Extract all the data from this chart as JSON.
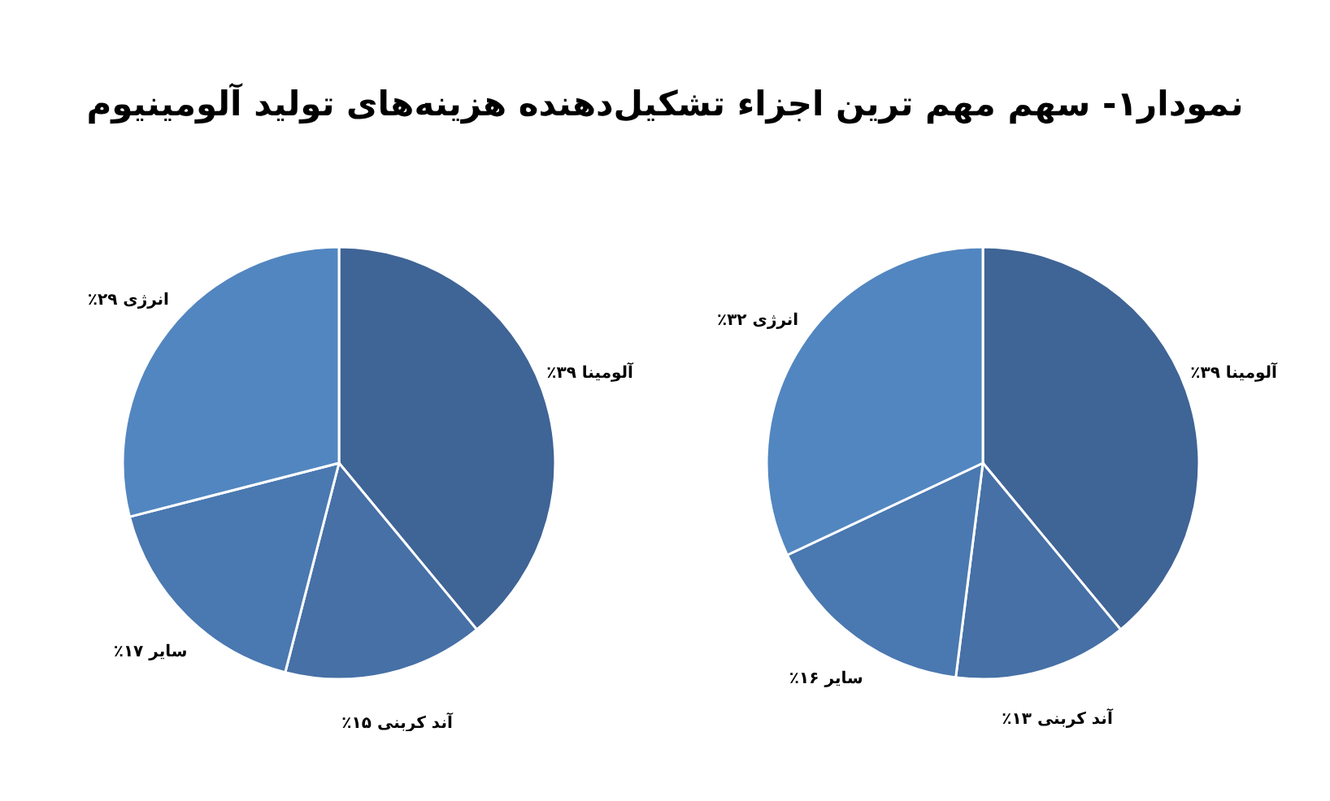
{
  "chart_data": [
    {
      "type": "pie",
      "title": "نمودار۱- سهم مهم ترین اجزاء تشکیل‌دهنده هزینه‌های تولید آلومینیوم",
      "categories": [
        "آلومینا",
        "آند کربنی",
        "سایر",
        "انرژی"
      ],
      "values": [
        39,
        15,
        17,
        29
      ],
      "colors": [
        "#3f6496",
        "#4670a6",
        "#4a78b0",
        "#5286c0"
      ],
      "value_labels": [
        "۳۹٪",
        "۱۵٪",
        "۱۷٪",
        "۲۹٪"
      ]
    },
    {
      "type": "pie",
      "categories": [
        "آلومینا",
        "آند کربنی",
        "سایر",
        "انرژی"
      ],
      "values": [
        39,
        13,
        16,
        32
      ],
      "colors": [
        "#3f6496",
        "#4670a6",
        "#4a78b0",
        "#5286c0"
      ],
      "value_labels": [
        "۳۹٪",
        "۱۳٪",
        "۱۶٪",
        "۳۲٪"
      ]
    }
  ]
}
